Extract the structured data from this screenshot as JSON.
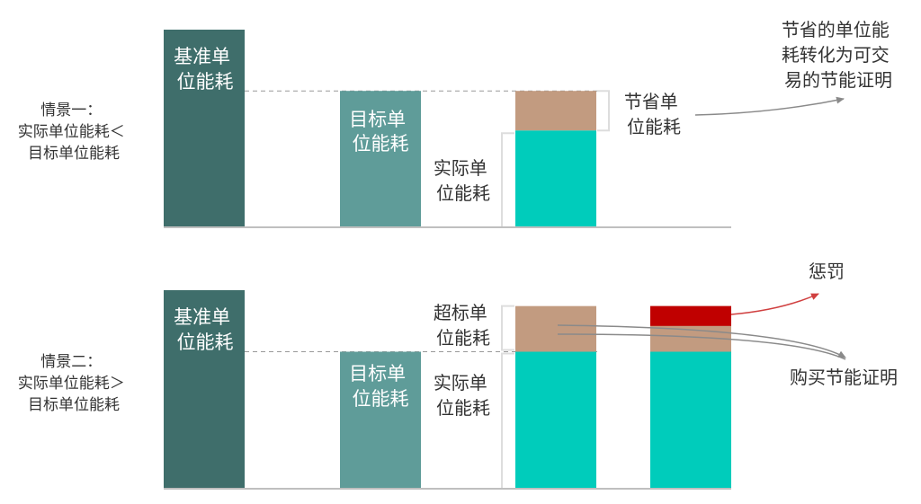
{
  "colors": {
    "baseline_bar": "#3f6e6b",
    "target_bar": "#5f9c99",
    "actual_bar": "#00ccbb",
    "saving_segment": "#c29b80",
    "penalty_segment": "#c00000",
    "guide_line": "#999999",
    "bracket": "#dddddd",
    "penalty_arrow": "#d04040",
    "grey_arrow": "#8a8a8a"
  },
  "scenario1": {
    "title_lines": [
      "情景一：",
      "实际单位能耗＜",
      "目标单位能耗"
    ],
    "baseline_lines": [
      "基准单",
      "位能耗"
    ],
    "target_lines": [
      "目标单",
      "位能耗"
    ],
    "actual_lines": [
      "实际单",
      "位能耗"
    ],
    "saving_lines": [
      "节省单",
      "位能耗"
    ],
    "certificate_lines": [
      "节省的单位能",
      "耗转化为可交",
      "易的节能证明"
    ],
    "levels": {
      "baseline": 1.0,
      "target": 0.69,
      "actual": 0.49
    }
  },
  "scenario2": {
    "title_lines": [
      "情景二：",
      "实际单位能耗＞",
      "目标单位能耗"
    ],
    "baseline_lines": [
      "基准单",
      "位能耗"
    ],
    "target_lines": [
      "目标单",
      "位能耗"
    ],
    "actual_lines": [
      "实际单",
      "位能耗"
    ],
    "excess_lines": [
      "超标单",
      "位能耗"
    ],
    "penalty_label": "惩罚",
    "buy_label": "购买节能证明",
    "levels": {
      "baseline": 1.0,
      "target": 0.69,
      "actual": 0.92,
      "penalty_band": 0.1
    }
  }
}
